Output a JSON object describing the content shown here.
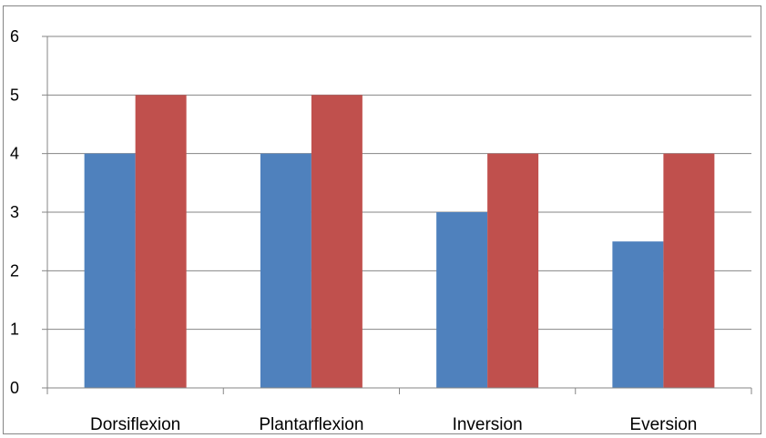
{
  "chart_data": {
    "type": "bar",
    "categories": [
      "Dorsiflexion",
      "Plantarflexion",
      "Inversion",
      "Eversion"
    ],
    "series": [
      {
        "values": [
          4,
          4,
          3,
          2.5
        ],
        "color": "#4F81BD"
      },
      {
        "values": [
          5,
          5,
          4,
          4
        ],
        "color": "#C0504D"
      }
    ],
    "title": "",
    "xlabel": "",
    "ylabel": "",
    "ylim": [
      0,
      6
    ],
    "yticks": [
      0,
      1,
      2,
      3,
      4,
      5,
      6
    ],
    "grid": true,
    "legend": "none"
  }
}
